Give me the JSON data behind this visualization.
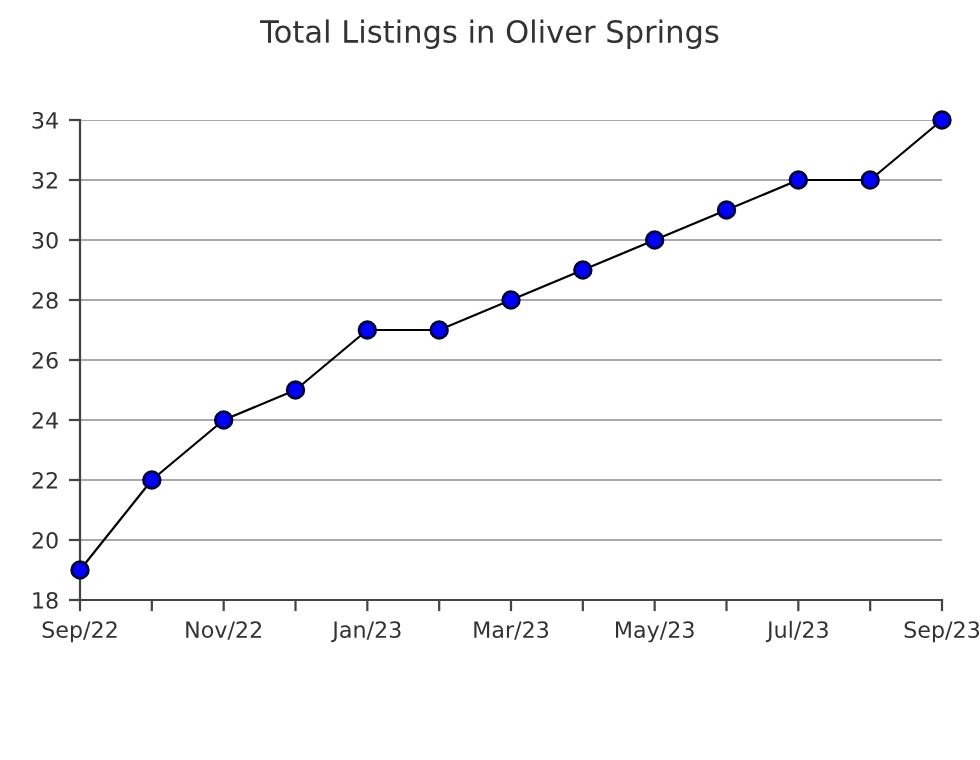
{
  "chart_data": {
    "type": "line",
    "title": "Total Listings in Oliver Springs",
    "categories": [
      "Sep/22",
      null,
      "Nov/22",
      null,
      "Jan/23",
      null,
      "Mar/23",
      null,
      "May/23",
      null,
      "Jul/23",
      null,
      "Sep/23"
    ],
    "series": [
      {
        "color": "#0000ff",
        "values": [
          19,
          22,
          24,
          25,
          27,
          27,
          28,
          29,
          30,
          31,
          32,
          32,
          34
        ]
      }
    ],
    "ylim": [
      18,
      34
    ],
    "yticks": [
      18,
      20,
      22,
      24,
      26,
      28,
      30,
      32,
      34
    ],
    "grid": "y",
    "marker": "circle",
    "line_style": "solid",
    "legend": false
  }
}
